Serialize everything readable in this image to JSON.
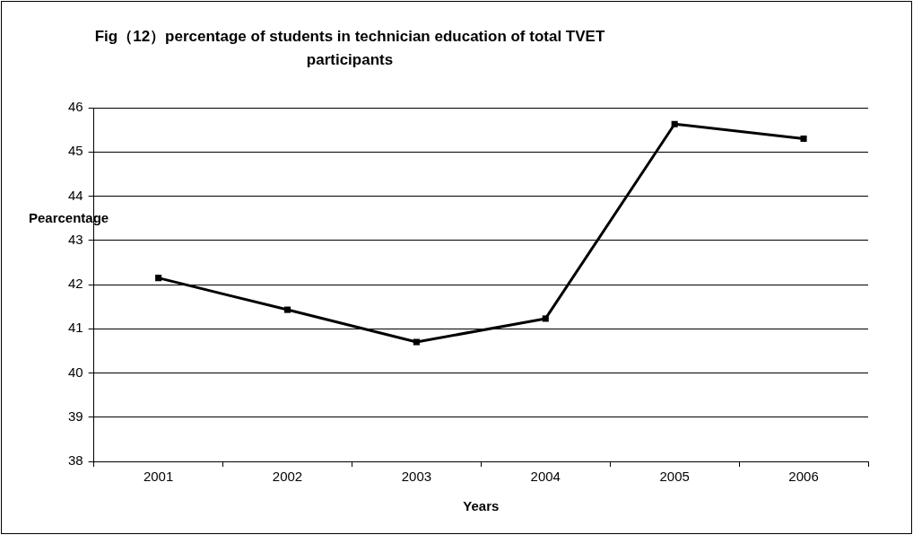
{
  "chart_data": {
    "type": "line",
    "title": "Fig（12）percentage of students in technician education of total TVET participants",
    "xlabel": "Years",
    "ylabel": "Pearcentage",
    "categories": [
      "2001",
      "2002",
      "2003",
      "2004",
      "2005",
      "2006"
    ],
    "series": [
      {
        "color": "#000000",
        "values": [
          42.15,
          41.43,
          40.7,
          41.23,
          45.63,
          45.3
        ]
      }
    ],
    "ylim": [
      38,
      46
    ],
    "yticks": [
      38,
      39,
      40,
      41,
      42,
      43,
      44,
      45,
      46
    ],
    "grid": "y",
    "legend": false,
    "marker": "square",
    "line_style": "solid"
  }
}
